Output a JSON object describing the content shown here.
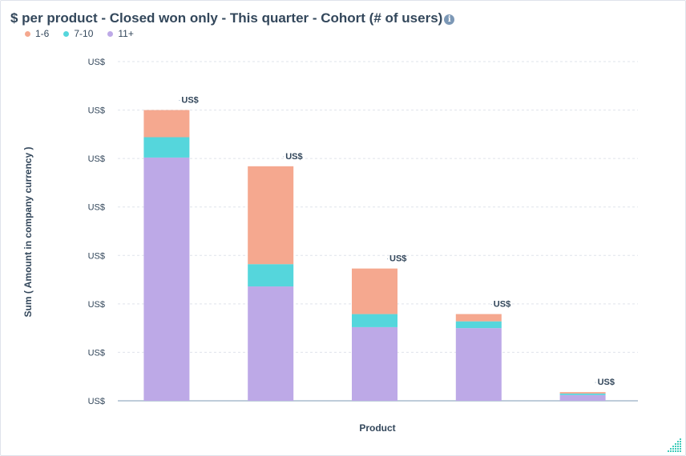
{
  "chart_data": {
    "type": "bar",
    "stacked": true,
    "title": "$ per product - Closed won only - This quarter - Cohort (# of users)",
    "xlabel": "Product",
    "ylabel": "Sum ( Amount in company currency )",
    "ylim": [
      0,
      7
    ],
    "y_tick_labels": [
      "US$",
      "US$",
      "US$",
      "US$",
      "US$",
      "US$",
      "US$",
      "US$"
    ],
    "categories": [
      "",
      "",
      "",
      "",
      ""
    ],
    "total_labels": [
      "US$",
      "US$",
      "US$",
      "US$",
      "US$"
    ],
    "series": [
      {
        "name": "11+",
        "color": "#bda9e7",
        "values": [
          5.02,
          2.36,
          1.52,
          1.5,
          0.12
        ]
      },
      {
        "name": "7-10",
        "color": "#55d6dc",
        "values": [
          0.42,
          0.46,
          0.27,
          0.14,
          0.03
        ]
      },
      {
        "name": "1-6",
        "color": "#f5a88f",
        "values": [
          0.56,
          2.02,
          0.94,
          0.15,
          0.03
        ]
      }
    ],
    "legend_position": "top-left",
    "grid": true
  },
  "icons": {
    "info": "info-icon",
    "resize": "resize-handle-icon"
  }
}
